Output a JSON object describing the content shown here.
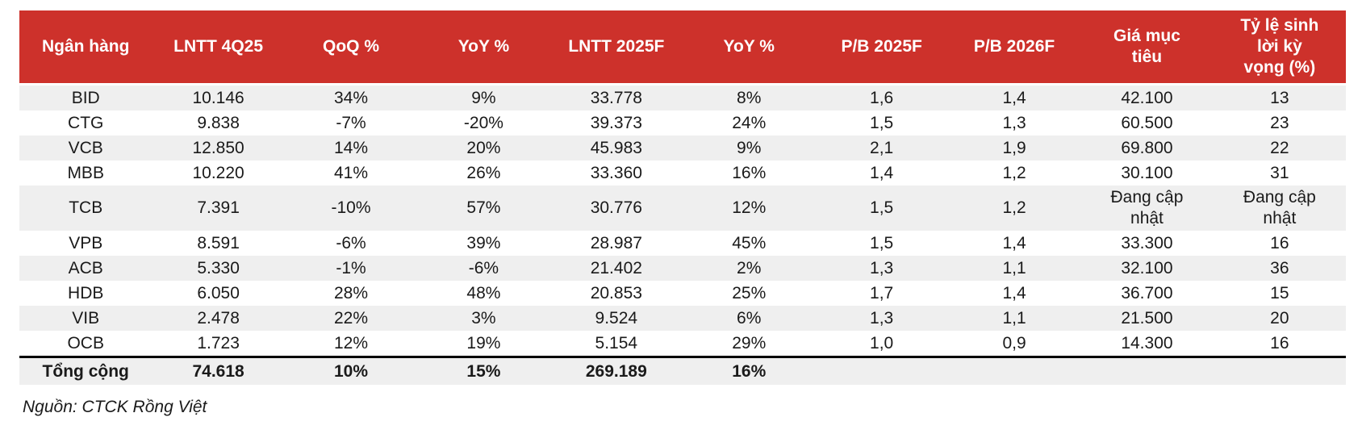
{
  "table": {
    "columns": [
      "Ngân hàng",
      "LNTT 4Q25",
      "QoQ %",
      "YoY %",
      "LNTT 2025F",
      "YoY %",
      "P/B 2025F",
      "P/B 2026F",
      "Giá mục tiêu",
      "Tỷ lệ sinh lời kỳ vọng (%)"
    ],
    "rows": [
      {
        "bank": "BID",
        "cells": [
          "BID",
          "10.146",
          "34%",
          "9%",
          "33.778",
          "8%",
          "1,6",
          "1,4",
          "42.100",
          "13"
        ]
      },
      {
        "bank": "CTG",
        "cells": [
          "CTG",
          "9.838",
          "-7%",
          "-20%",
          "39.373",
          "24%",
          "1,5",
          "1,3",
          "60.500",
          "23"
        ]
      },
      {
        "bank": "VCB",
        "cells": [
          "VCB",
          "12.850",
          "14%",
          "20%",
          "45.983",
          "9%",
          "2,1",
          "1,9",
          "69.800",
          "22"
        ]
      },
      {
        "bank": "MBB",
        "cells": [
          "MBB",
          "10.220",
          "41%",
          "26%",
          "33.360",
          "16%",
          "1,4",
          "1,2",
          "30.100",
          "31"
        ]
      },
      {
        "bank": "TCB",
        "cells": [
          "TCB",
          "7.391",
          "-10%",
          "57%",
          "30.776",
          "12%",
          "1,5",
          "1,2",
          "Đang cập nhật",
          "Đang cập nhật"
        ]
      },
      {
        "bank": "VPB",
        "cells": [
          "VPB",
          "8.591",
          "-6%",
          "39%",
          "28.987",
          "45%",
          "1,5",
          "1,4",
          "33.300",
          "16"
        ]
      },
      {
        "bank": "ACB",
        "cells": [
          "ACB",
          "5.330",
          "-1%",
          "-6%",
          "21.402",
          "2%",
          "1,3",
          "1,1",
          "32.100",
          "36"
        ]
      },
      {
        "bank": "HDB",
        "cells": [
          "HDB",
          "6.050",
          "28%",
          "48%",
          "20.853",
          "25%",
          "1,7",
          "1,4",
          "36.700",
          "15"
        ]
      },
      {
        "bank": "VIB",
        "cells": [
          "VIB",
          "2.478",
          "22%",
          "3%",
          "9.524",
          "6%",
          "1,3",
          "1,1",
          "21.500",
          "20"
        ]
      },
      {
        "bank": "OCB",
        "cells": [
          "OCB",
          "1.723",
          "12%",
          "19%",
          "5.154",
          "29%",
          "1,0",
          "0,9",
          "14.300",
          "16"
        ]
      }
    ],
    "total_row": [
      "Tổng cộng",
      "74.618",
      "10%",
      "15%",
      "269.189",
      "16%",
      "",
      "",
      "",
      ""
    ]
  },
  "source": "Nguồn: CTCK Rồng Việt",
  "colors": {
    "header_bg": "#cd312b",
    "header_text": "#ffffff",
    "stripe": "#efefef",
    "text": "#1a1a1a",
    "total_rule": "#000000"
  }
}
